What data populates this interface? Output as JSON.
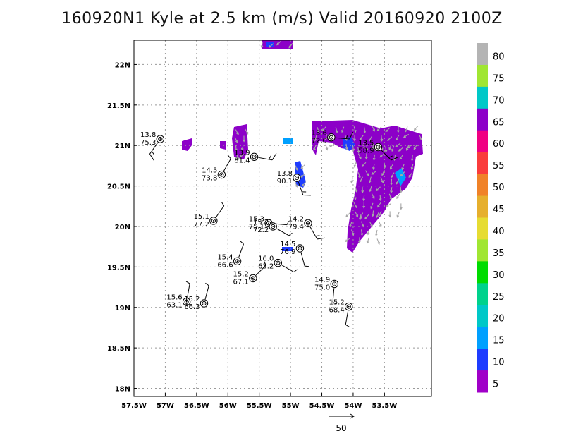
{
  "title": "160920N1 Kyle at 2.5 km (m/s) Valid 20160920 2100Z",
  "map": {
    "lon_range": [
      -57.5,
      -52.75
    ],
    "lat_range": [
      17.9,
      22.3
    ],
    "lon_ticks": [
      {
        "v": -57.5,
        "label": "57.5W"
      },
      {
        "v": -57,
        "label": "57W"
      },
      {
        "v": -56.5,
        "label": "56.5W"
      },
      {
        "v": -56,
        "label": "56W"
      },
      {
        "v": -55.5,
        "label": "55.5W"
      },
      {
        "v": -55,
        "label": "55W"
      },
      {
        "v": -54.5,
        "label": "54.5W"
      },
      {
        "v": -54,
        "label": "54W"
      },
      {
        "v": -53.5,
        "label": "53.5W"
      }
    ],
    "lat_ticks": [
      {
        "v": 18,
        "label": "18N"
      },
      {
        "v": 18.5,
        "label": "18.5N"
      },
      {
        "v": 19,
        "label": "19N"
      },
      {
        "v": 19.5,
        "label": "19.5N"
      },
      {
        "v": 20,
        "label": "20N"
      },
      {
        "v": 20.5,
        "label": "20.5N"
      },
      {
        "v": 21,
        "label": "21N"
      },
      {
        "v": 21.5,
        "label": "21.5N"
      },
      {
        "v": 22,
        "label": "22N"
      }
    ],
    "grid": true
  },
  "colorbar": {
    "levels": [
      "5",
      "10",
      "15",
      "20",
      "25",
      "30",
      "35",
      "40",
      "45",
      "50",
      "55",
      "60",
      "65",
      "70",
      "75",
      "80"
    ],
    "colors": [
      "#a000c8",
      "#1e3cff",
      "#00a0ff",
      "#00c8c8",
      "#00d28c",
      "#00dc00",
      "#a0e632",
      "#e6dc32",
      "#e6af2d",
      "#f08228",
      "#fa3c3c",
      "#f00082",
      "#8c00c8",
      "#00c8c8",
      "#a0e632",
      "#b4b4b4"
    ]
  },
  "observations": [
    {
      "lon": -57.08,
      "lat": 21.08,
      "a": "13.8",
      "b": "75.3",
      "dir": 215,
      "spd": 10
    },
    {
      "lon": -55.58,
      "lat": 20.86,
      "a": "13.9",
      "b": "81.4",
      "dir": 100,
      "spd": 10
    },
    {
      "lon": -56.1,
      "lat": 20.64,
      "a": "14.5",
      "b": "73.8",
      "dir": 30,
      "spd": 5
    },
    {
      "lon": -54.9,
      "lat": 20.6,
      "a": "13.8",
      "b": "90.1",
      "dir": 160,
      "spd": 10
    },
    {
      "lon": -54.35,
      "lat": 21.1,
      "a": "13.6",
      "b": "72.0",
      "dir": 95,
      "spd": 10
    },
    {
      "lon": -53.6,
      "lat": 20.98,
      "a": "13.5",
      "b": "58.9",
      "dir": 135,
      "spd": 10
    },
    {
      "lon": -56.23,
      "lat": 20.07,
      "a": "15.1",
      "b": "77.2",
      "dir": 35,
      "spd": 5
    },
    {
      "lon": -55.35,
      "lat": 20.04,
      "a": "15.3",
      "b": "75.1",
      "dir": 95,
      "spd": 5
    },
    {
      "lon": -55.28,
      "lat": 20.0,
      "a": "15.2",
      "b": "72.2",
      "dir": 120,
      "spd": 5
    },
    {
      "lon": -54.72,
      "lat": 20.04,
      "a": "14.2",
      "b": "79.4",
      "dir": 150,
      "spd": 10
    },
    {
      "lon": -54.85,
      "lat": 19.73,
      "a": "14.5",
      "b": "76.9",
      "dir": 165,
      "spd": 5
    },
    {
      "lon": -55.85,
      "lat": 19.57,
      "a": "15.4",
      "b": "66.6",
      "dir": 20,
      "spd": 5
    },
    {
      "lon": -55.2,
      "lat": 19.55,
      "a": "16.0",
      "b": "63.2",
      "dir": 120,
      "spd": 5
    },
    {
      "lon": -55.6,
      "lat": 19.36,
      "a": "15.2",
      "b": "67.1",
      "dir": 45,
      "spd": 5
    },
    {
      "lon": -54.3,
      "lat": 19.29,
      "a": "14.9",
      "b": "75.0",
      "dir": 185,
      "spd": 5
    },
    {
      "lon": -56.66,
      "lat": 19.07,
      "a": "15.6",
      "b": "63.1",
      "dir": 10,
      "spd": 5
    },
    {
      "lon": -56.38,
      "lat": 19.05,
      "a": "15.2",
      "b": "66.3",
      "dir": 15,
      "spd": 5
    },
    {
      "lon": -54.07,
      "lat": 19.01,
      "a": "15.2",
      "b": "68.4",
      "dir": 190,
      "spd": 5
    }
  ],
  "reference_vector": {
    "label": "50"
  }
}
